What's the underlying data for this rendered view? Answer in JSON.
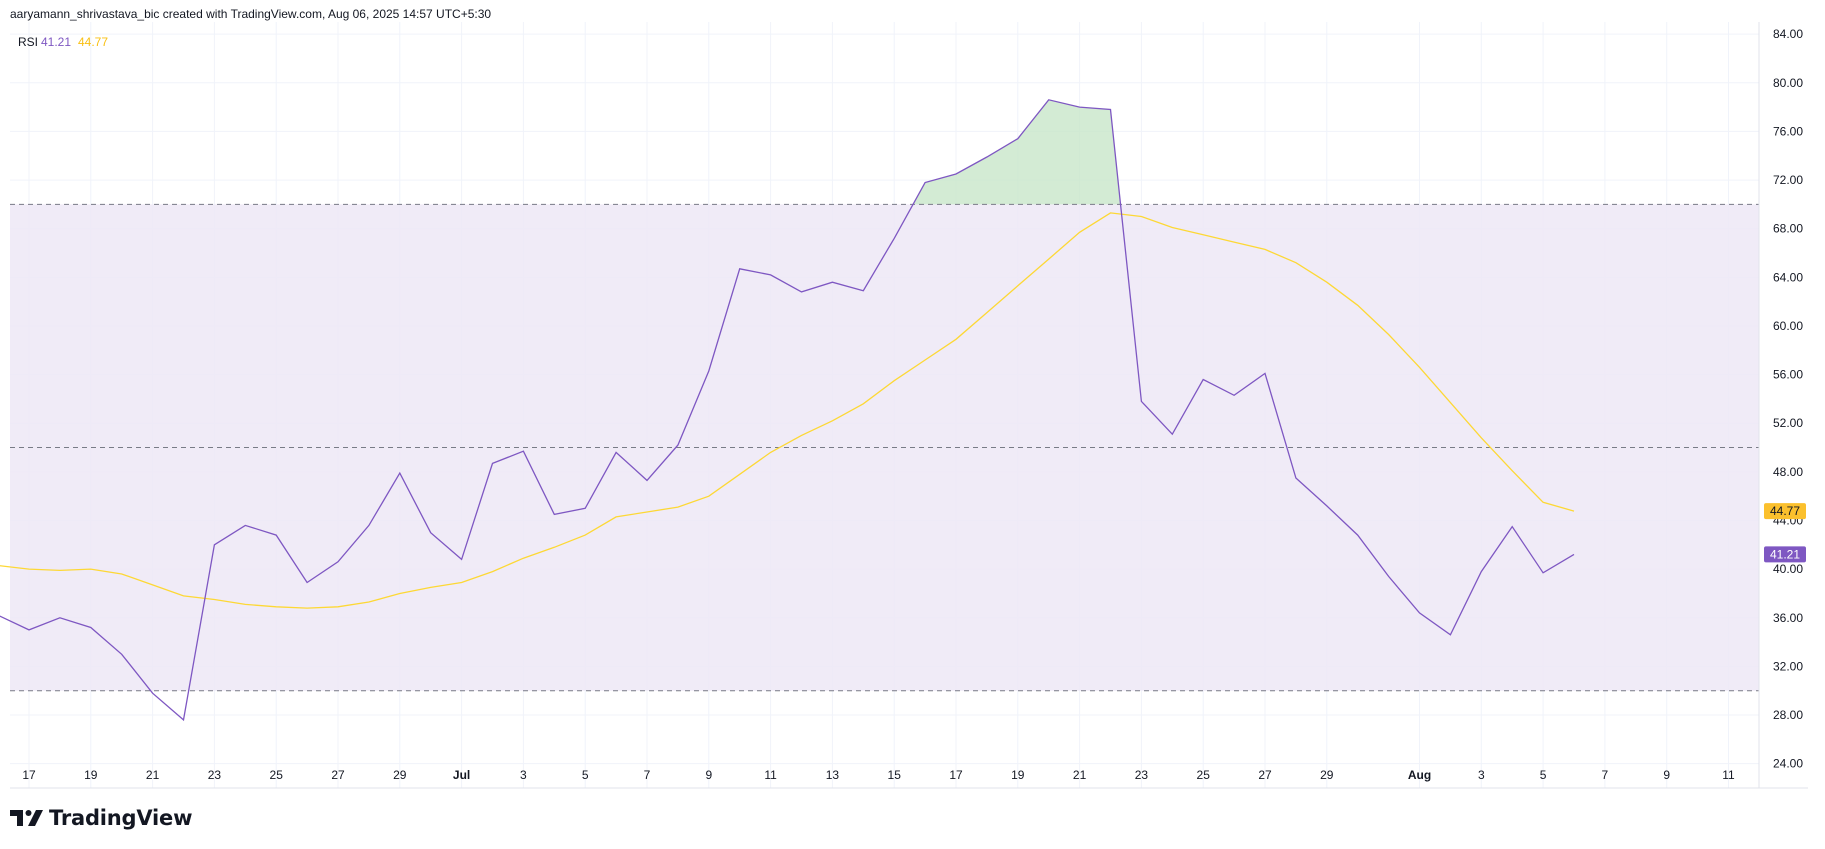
{
  "header": {
    "attribution": "aaryamann_shrivastava_bic created with TradingView.com, Aug 06, 2025 14:57 UTC+5:30"
  },
  "legend": {
    "name": "RSI",
    "rsi_value": "41.21",
    "ma_value": "44.77"
  },
  "brand": {
    "name": "TradingView"
  },
  "colors": {
    "rsi": "#7e57c2",
    "ma": "#fdd835",
    "band_fill": "#ede7f6",
    "overbought_fill": "#c8e6c9",
    "grid": "#f0f3fa",
    "axis_text": "#131722"
  },
  "chart_data": {
    "type": "line",
    "indicator": "RSI",
    "ylim": [
      22,
      85
    ],
    "y_ticks": [
      "24.00",
      "28.00",
      "32.00",
      "36.00",
      "40.00",
      "44.00",
      "48.00",
      "52.00",
      "56.00",
      "60.00",
      "64.00",
      "68.00",
      "72.00",
      "76.00",
      "80.00",
      "84.00"
    ],
    "levels": {
      "upper": 70,
      "middle": 50,
      "lower": 30
    },
    "x_ticks": [
      {
        "date": "2025-06-17",
        "label": "17"
      },
      {
        "date": "2025-06-19",
        "label": "19"
      },
      {
        "date": "2025-06-21",
        "label": "21"
      },
      {
        "date": "2025-06-23",
        "label": "23"
      },
      {
        "date": "2025-06-25",
        "label": "25"
      },
      {
        "date": "2025-06-27",
        "label": "27"
      },
      {
        "date": "2025-06-29",
        "label": "29"
      },
      {
        "date": "2025-07-01",
        "label": "Jul"
      },
      {
        "date": "2025-07-03",
        "label": "3"
      },
      {
        "date": "2025-07-05",
        "label": "5"
      },
      {
        "date": "2025-07-07",
        "label": "7"
      },
      {
        "date": "2025-07-09",
        "label": "9"
      },
      {
        "date": "2025-07-11",
        "label": "11"
      },
      {
        "date": "2025-07-13",
        "label": "13"
      },
      {
        "date": "2025-07-15",
        "label": "15"
      },
      {
        "date": "2025-07-17",
        "label": "17"
      },
      {
        "date": "2025-07-19",
        "label": "19"
      },
      {
        "date": "2025-07-21",
        "label": "21"
      },
      {
        "date": "2025-07-23",
        "label": "23"
      },
      {
        "date": "2025-07-25",
        "label": "25"
      },
      {
        "date": "2025-07-27",
        "label": "27"
      },
      {
        "date": "2025-07-29",
        "label": "29"
      },
      {
        "date": "2025-08-01",
        "label": "Aug"
      },
      {
        "date": "2025-08-03",
        "label": "3"
      },
      {
        "date": "2025-08-05",
        "label": "5"
      },
      {
        "date": "2025-08-07",
        "label": "7"
      },
      {
        "date": "2025-08-09",
        "label": "9"
      },
      {
        "date": "2025-08-11",
        "label": "11"
      }
    ],
    "x": [
      "2025-06-16",
      "2025-06-17",
      "2025-06-18",
      "2025-06-19",
      "2025-06-20",
      "2025-06-21",
      "2025-06-22",
      "2025-06-23",
      "2025-06-24",
      "2025-06-25",
      "2025-06-26",
      "2025-06-27",
      "2025-06-28",
      "2025-06-29",
      "2025-06-30",
      "2025-07-01",
      "2025-07-02",
      "2025-07-03",
      "2025-07-04",
      "2025-07-05",
      "2025-07-06",
      "2025-07-07",
      "2025-07-08",
      "2025-07-09",
      "2025-07-10",
      "2025-07-11",
      "2025-07-12",
      "2025-07-13",
      "2025-07-14",
      "2025-07-15",
      "2025-07-16",
      "2025-07-17",
      "2025-07-18",
      "2025-07-19",
      "2025-07-20",
      "2025-07-21",
      "2025-07-22",
      "2025-07-23",
      "2025-07-24",
      "2025-07-25",
      "2025-07-26",
      "2025-07-27",
      "2025-07-28",
      "2025-07-29",
      "2025-07-30",
      "2025-07-31",
      "2025-08-01",
      "2025-08-02",
      "2025-08-03",
      "2025-08-04",
      "2025-08-05",
      "2025-08-06"
    ],
    "series": [
      {
        "values": [
          36.2,
          35.0,
          36.0,
          35.2,
          33.0,
          29.8,
          27.6,
          42.0,
          43.6,
          42.8,
          38.9,
          40.6,
          43.6,
          47.9,
          43.0,
          40.8,
          48.7,
          49.7,
          44.5,
          45.0,
          49.6,
          47.3,
          50.2,
          56.3,
          64.7,
          64.2,
          62.8,
          63.6,
          62.9,
          67.2,
          71.8,
          72.5,
          73.9,
          75.4,
          78.6,
          78.0,
          77.8,
          53.8,
          51.1,
          55.6,
          54.3,
          56.1,
          47.5,
          45.2,
          42.8,
          39.4,
          36.4,
          34.6,
          39.8,
          43.5,
          39.7,
          41.21
        ]
      },
      {
        "values": [
          40.3,
          40.0,
          39.9,
          40.0,
          39.6,
          38.7,
          37.8,
          37.5,
          37.1,
          36.9,
          36.8,
          36.9,
          37.3,
          38.0,
          38.5,
          38.9,
          39.8,
          40.9,
          41.8,
          42.8,
          44.3,
          44.7,
          45.1,
          46.0,
          47.8,
          49.6,
          51.0,
          52.2,
          53.6,
          55.5,
          57.2,
          58.9,
          61.1,
          63.3,
          65.5,
          67.7,
          69.3,
          69.0,
          68.1,
          67.5,
          66.9,
          66.3,
          65.2,
          63.6,
          61.7,
          59.3,
          56.6,
          53.7,
          50.8,
          48.1,
          45.5,
          44.77
        ]
      }
    ]
  }
}
